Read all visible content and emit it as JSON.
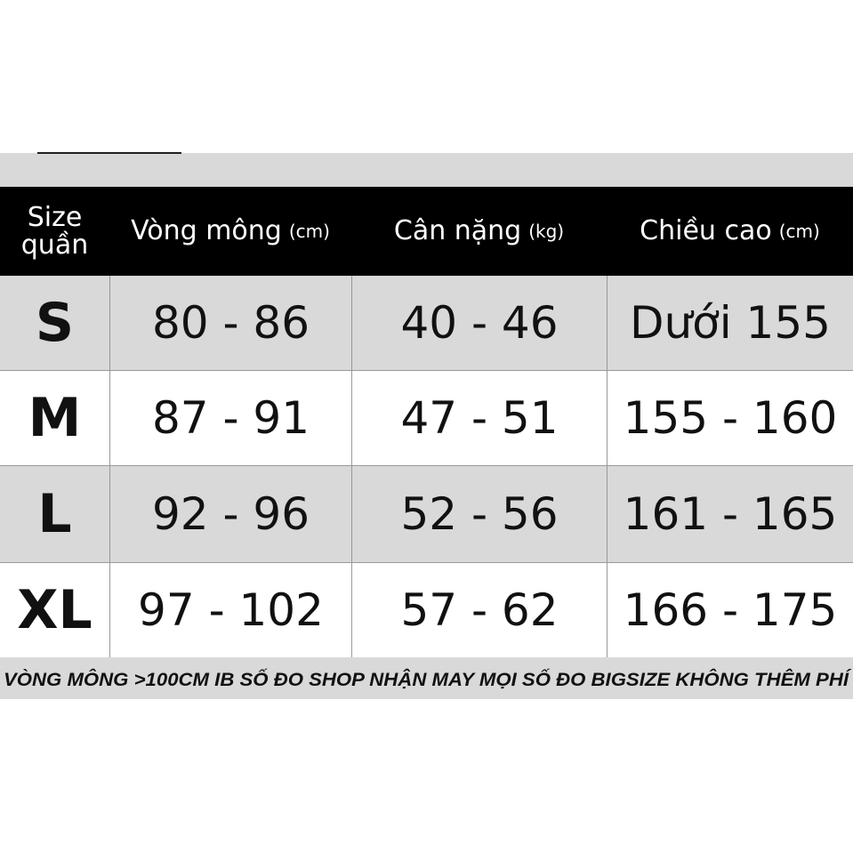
{
  "table": {
    "header": [
      {
        "label": "Size quần"
      },
      {
        "label": "Vòng mông",
        "unit": "(cm)"
      },
      {
        "label": "Cân nặng",
        "unit": "(kg)"
      },
      {
        "label": "Chiều cao",
        "unit": "(cm)"
      }
    ],
    "rows": [
      [
        "S",
        "80 - 86",
        "40 - 46",
        "Dưới 155"
      ],
      [
        "M",
        "87 - 91",
        "47 - 51",
        "155 - 160"
      ],
      [
        "L",
        "92 - 96",
        "52 - 56",
        "161 - 165"
      ],
      [
        "XL",
        "97 - 102",
        "57 - 62",
        "166 - 175"
      ]
    ]
  },
  "footer": "VÒNG MÔNG >100CM IB SỐ ĐO SHOP NHẬN MAY MỌI SỐ ĐO BIGSIZE KHÔNG THÊM PHÍ"
}
